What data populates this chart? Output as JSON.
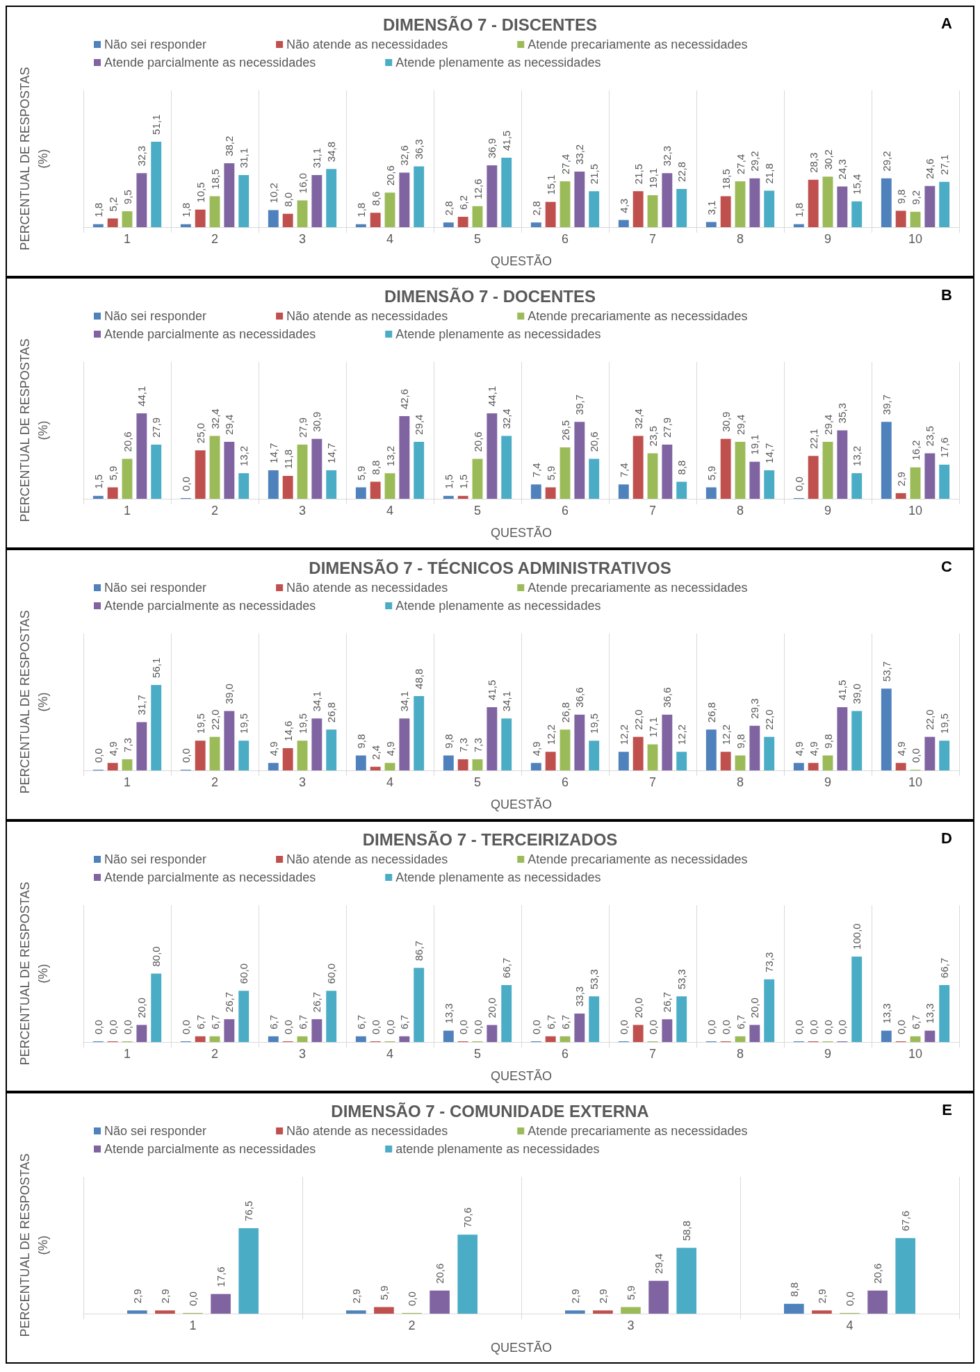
{
  "chart_data": [
    {
      "type": "bar",
      "title": "DIMENSÃO 7 - DISCENTES",
      "xlabel": "QUESTÃO",
      "ylabel": "PERCENTUAL DE RESPOSTAS (%)",
      "annotations": [
        "A"
      ],
      "legend": "top",
      "categories": [
        "1",
        "2",
        "3",
        "4",
        "5",
        "6",
        "7",
        "8",
        "9",
        "10"
      ],
      "series": [
        {
          "name": "Não sei responder",
          "color": "#4f81bd",
          "values": [
            1.8,
            1.8,
            10.2,
            1.8,
            2.8,
            2.8,
            4.3,
            3.1,
            1.8,
            29.2
          ],
          "value_labels": [
            "1,8",
            "1,8",
            "10,2",
            "1,8",
            "2,8",
            "2,8",
            "4,3",
            "3,1",
            "1,8",
            "29,2"
          ]
        },
        {
          "name": "Não atende as necessidades",
          "color": "#c0504d",
          "values": [
            5.2,
            10.5,
            8.0,
            8.6,
            6.2,
            15.1,
            21.5,
            18.5,
            28.3,
            9.8
          ],
          "value_labels": [
            "5,2",
            "10,5",
            "8,0",
            "8,6",
            "6,2",
            "15,1",
            "21,5",
            "18,5",
            "28,3",
            "9,8"
          ]
        },
        {
          "name": "Atende precariamente as necessidades",
          "color": "#9bbb59",
          "values": [
            9.5,
            18.5,
            16.0,
            20.6,
            12.6,
            27.4,
            19.1,
            27.4,
            30.2,
            9.2
          ],
          "value_labels": [
            "9,5",
            "18,5",
            "16,0",
            "20,6",
            "12,6",
            "27,4",
            "19,1",
            "27,4",
            "30,2",
            "9,2"
          ]
        },
        {
          "name": "Atende parcialmente as necessidades",
          "color": "#8064a2",
          "values": [
            32.3,
            38.2,
            31.1,
            32.6,
            36.9,
            33.2,
            32.3,
            29.2,
            24.3,
            24.6
          ],
          "value_labels": [
            "32,3",
            "38,2",
            "31,1",
            "32,6",
            "36,9",
            "33,2",
            "32,3",
            "29,2",
            "24,3",
            "24,6"
          ]
        },
        {
          "name": "Atende plenamente as necessidades",
          "color": "#4bacc6",
          "values": [
            51.1,
            31.1,
            34.8,
            36.3,
            41.5,
            21.5,
            22.8,
            21.8,
            15.4,
            27.1
          ],
          "value_labels": [
            "51,1",
            "31,1",
            "34,8",
            "36,3",
            "41,5",
            "21,5",
            "22,8",
            "21,8",
            "15,4",
            "27,1"
          ]
        }
      ]
    },
    {
      "type": "bar",
      "title": "DIMENSÃO 7 - DOCENTES",
      "xlabel": "QUESTÃO",
      "ylabel": "PERCENTUAL DE RESPOSTAS (%)",
      "annotations": [
        "B"
      ],
      "legend": "top",
      "categories": [
        "1",
        "2",
        "3",
        "4",
        "5",
        "6",
        "7",
        "8",
        "9",
        "10"
      ],
      "series": [
        {
          "name": "Não sei responder",
          "color": "#4f81bd",
          "values": [
            1.5,
            0.0,
            14.7,
            5.9,
            1.5,
            7.4,
            7.4,
            5.9,
            0.0,
            39.7
          ],
          "value_labels": [
            "1,5",
            "0,0",
            "14,7",
            "5,9",
            "1,5",
            "7,4",
            "7,4",
            "5,9",
            "0,0",
            "39,7"
          ]
        },
        {
          "name": "Não atende as necessidades",
          "color": "#c0504d",
          "values": [
            5.9,
            25.0,
            11.8,
            8.8,
            1.5,
            5.9,
            32.4,
            30.9,
            22.1,
            2.9
          ],
          "value_labels": [
            "5,9",
            "25,0",
            "11,8",
            "8,8",
            "1,5",
            "5,9",
            "32,4",
            "30,9",
            "22,1",
            "2,9"
          ]
        },
        {
          "name": "Atende precariamente as necessidades",
          "color": "#9bbb59",
          "values": [
            20.6,
            32.4,
            27.9,
            13.2,
            20.6,
            26.5,
            23.5,
            29.4,
            29.4,
            16.2
          ],
          "value_labels": [
            "20,6",
            "32,4",
            "27,9",
            "13,2",
            "20,6",
            "26,5",
            "23,5",
            "29,4",
            "29,4",
            "16,2"
          ]
        },
        {
          "name": "Atende parcialmente as necessidades",
          "color": "#8064a2",
          "values": [
            44.1,
            29.4,
            30.9,
            42.6,
            44.1,
            39.7,
            27.9,
            19.1,
            35.3,
            23.5
          ],
          "value_labels": [
            "44,1",
            "29,4",
            "30,9",
            "42,6",
            "44,1",
            "39,7",
            "27,9",
            "19,1",
            "35,3",
            "23,5"
          ]
        },
        {
          "name": "Atende plenamente as necessidades",
          "color": "#4bacc6",
          "values": [
            27.9,
            13.2,
            14.7,
            29.4,
            32.4,
            20.6,
            8.8,
            14.7,
            13.2,
            17.6
          ],
          "value_labels": [
            "27,9",
            "13,2",
            "14,7",
            "29,4",
            "32,4",
            "20,6",
            "8,8",
            "14,7",
            "13,2",
            "17,6"
          ]
        }
      ]
    },
    {
      "type": "bar",
      "title": "DIMENSÃO 7 - TÉCNICOS ADMINISTRATIVOS",
      "xlabel": "QUESTÃO",
      "ylabel": "PERCENTUAL DE RESPOSTAS (%)",
      "annotations": [
        "C"
      ],
      "legend": "top",
      "categories": [
        "1",
        "2",
        "3",
        "4",
        "5",
        "6",
        "7",
        "8",
        "9",
        "10"
      ],
      "series": [
        {
          "name": "Não sei responder",
          "color": "#4f81bd",
          "values": [
            0.0,
            0.0,
            4.9,
            9.8,
            9.8,
            4.9,
            12.2,
            26.8,
            4.9,
            53.7
          ],
          "value_labels": [
            "0,0",
            "0,0",
            "4,9",
            "9,8",
            "9,8",
            "4,9",
            "12,2",
            "26,8",
            "4,9",
            "53,7"
          ]
        },
        {
          "name": "Não atende as necessidades",
          "color": "#c0504d",
          "values": [
            4.9,
            19.5,
            14.6,
            2.4,
            7.3,
            12.2,
            22.0,
            12.2,
            4.9,
            4.9
          ],
          "value_labels": [
            "4,9",
            "19,5",
            "14,6",
            "2,4",
            "7,3",
            "12,2",
            "22,0",
            "12,2",
            "4,9",
            "4,9"
          ]
        },
        {
          "name": "Atende precariamente as necessidades",
          "color": "#9bbb59",
          "values": [
            7.3,
            22.0,
            19.5,
            4.9,
            7.3,
            26.8,
            17.1,
            9.8,
            9.8,
            0.0
          ],
          "value_labels": [
            "7,3",
            "22,0",
            "19,5",
            "4,9",
            "7,3",
            "26,8",
            "17,1",
            "9,8",
            "9,8",
            "0,0"
          ]
        },
        {
          "name": "Atende parcialmente as necessidades",
          "color": "#8064a2",
          "values": [
            31.7,
            39.0,
            34.1,
            34.1,
            41.5,
            36.6,
            36.6,
            29.3,
            41.5,
            22.0
          ],
          "value_labels": [
            "31,7",
            "39,0",
            "34,1",
            "34,1",
            "41,5",
            "36,6",
            "36,6",
            "29,3",
            "41,5",
            "22,0"
          ]
        },
        {
          "name": "Atende plenamente as necessidades",
          "color": "#4bacc6",
          "values": [
            56.1,
            19.5,
            26.8,
            48.8,
            34.1,
            19.5,
            12.2,
            22.0,
            39.0,
            19.5
          ],
          "value_labels": [
            "56,1",
            "19,5",
            "26,8",
            "48,8",
            "34,1",
            "19,5",
            "12,2",
            "22,0",
            "39,0",
            "19,5"
          ]
        }
      ]
    },
    {
      "type": "bar",
      "title": "DIMENSÃO 7 - TERCEIRIZADOS",
      "xlabel": "QUESTÃO",
      "ylabel": "PERCENTUAL DE RESPOSTAS (%)",
      "annotations": [
        "D"
      ],
      "legend": "top",
      "categories": [
        "1",
        "2",
        "3",
        "4",
        "5",
        "6",
        "7",
        "8",
        "9",
        "10"
      ],
      "series": [
        {
          "name": "Não sei responder",
          "color": "#4f81bd",
          "values": [
            0.0,
            0.0,
            6.7,
            6.7,
            13.3,
            0.0,
            0.0,
            0.0,
            0.0,
            13.3
          ],
          "value_labels": [
            "0,0",
            "0,0",
            "6,7",
            "6,7",
            "13,3",
            "0,0",
            "0,0",
            "0,0",
            "0,0",
            "13,3"
          ]
        },
        {
          "name": "Não atende as necessidades",
          "color": "#c0504d",
          "values": [
            0.0,
            6.7,
            0.0,
            0.0,
            0.0,
            6.7,
            20.0,
            0.0,
            0.0,
            0.0
          ],
          "value_labels": [
            "0,0",
            "6,7",
            "0,0",
            "0,0",
            "0,0",
            "6,7",
            "20,0",
            "0,0",
            "0,0",
            "0,0"
          ]
        },
        {
          "name": "Atende precariamente as necessidades",
          "color": "#9bbb59",
          "values": [
            0.0,
            6.7,
            6.7,
            0.0,
            0.0,
            6.7,
            0.0,
            6.7,
            0.0,
            6.7
          ],
          "value_labels": [
            "0,0",
            "6,7",
            "6,7",
            "0,0",
            "0,0",
            "6,7",
            "0,0",
            "6,7",
            "0,0",
            "6,7"
          ]
        },
        {
          "name": "Atende parcialmente as necessidades",
          "color": "#8064a2",
          "values": [
            20.0,
            26.7,
            26.7,
            6.7,
            20.0,
            33.3,
            26.7,
            20.0,
            0.0,
            13.3
          ],
          "value_labels": [
            "20,0",
            "26,7",
            "26,7",
            "6,7",
            "20,0",
            "33,3",
            "26,7",
            "20,0",
            "0,0",
            "13,3"
          ]
        },
        {
          "name": "Atende plenamente as necessidades",
          "color": "#4bacc6",
          "values": [
            80.0,
            60.0,
            60.0,
            86.7,
            66.7,
            53.3,
            53.3,
            73.3,
            100.0,
            66.7
          ],
          "value_labels": [
            "80,0",
            "60,0",
            "60,0",
            "86,7",
            "66,7",
            "53,3",
            "53,3",
            "73,3",
            "100,0",
            "66,7"
          ]
        }
      ]
    },
    {
      "type": "bar",
      "title": "DIMENSÃO 7 - COMUNIDADE EXTERNA",
      "xlabel": "QUESTÃO",
      "ylabel": "PERCENTUAL DE RESPOSTAS (%)",
      "annotations": [
        "E"
      ],
      "legend": "top",
      "categories": [
        "1",
        "2",
        "3",
        "4"
      ],
      "series": [
        {
          "name": "Não sei responder",
          "color": "#4f81bd",
          "values": [
            2.9,
            2.9,
            2.9,
            8.8
          ],
          "value_labels": [
            "2,9",
            "2,9",
            "2,9",
            "8,8"
          ]
        },
        {
          "name": "Não atende as necessidades",
          "color": "#c0504d",
          "values": [
            2.9,
            5.9,
            2.9,
            2.9
          ],
          "value_labels": [
            "2,9",
            "5,9",
            "2,9",
            "2,9"
          ]
        },
        {
          "name": "Atende precariamente as necessidades",
          "color": "#9bbb59",
          "values": [
            0.0,
            0.0,
            5.9,
            0.0
          ],
          "value_labels": [
            "0,0",
            "0,0",
            "5,9",
            "0,0"
          ]
        },
        {
          "name": "Atende parcialmente as necessidades",
          "color": "#8064a2",
          "values": [
            17.6,
            20.6,
            29.4,
            20.6
          ],
          "value_labels": [
            "17,6",
            "20,6",
            "29,4",
            "20,6"
          ]
        },
        {
          "name": "atende plenamente as necessidades",
          "color": "#4bacc6",
          "values": [
            76.5,
            70.6,
            58.8,
            67.6
          ],
          "value_labels": [
            "76,5",
            "70,6",
            "58,8",
            "67,6"
          ]
        }
      ]
    }
  ]
}
